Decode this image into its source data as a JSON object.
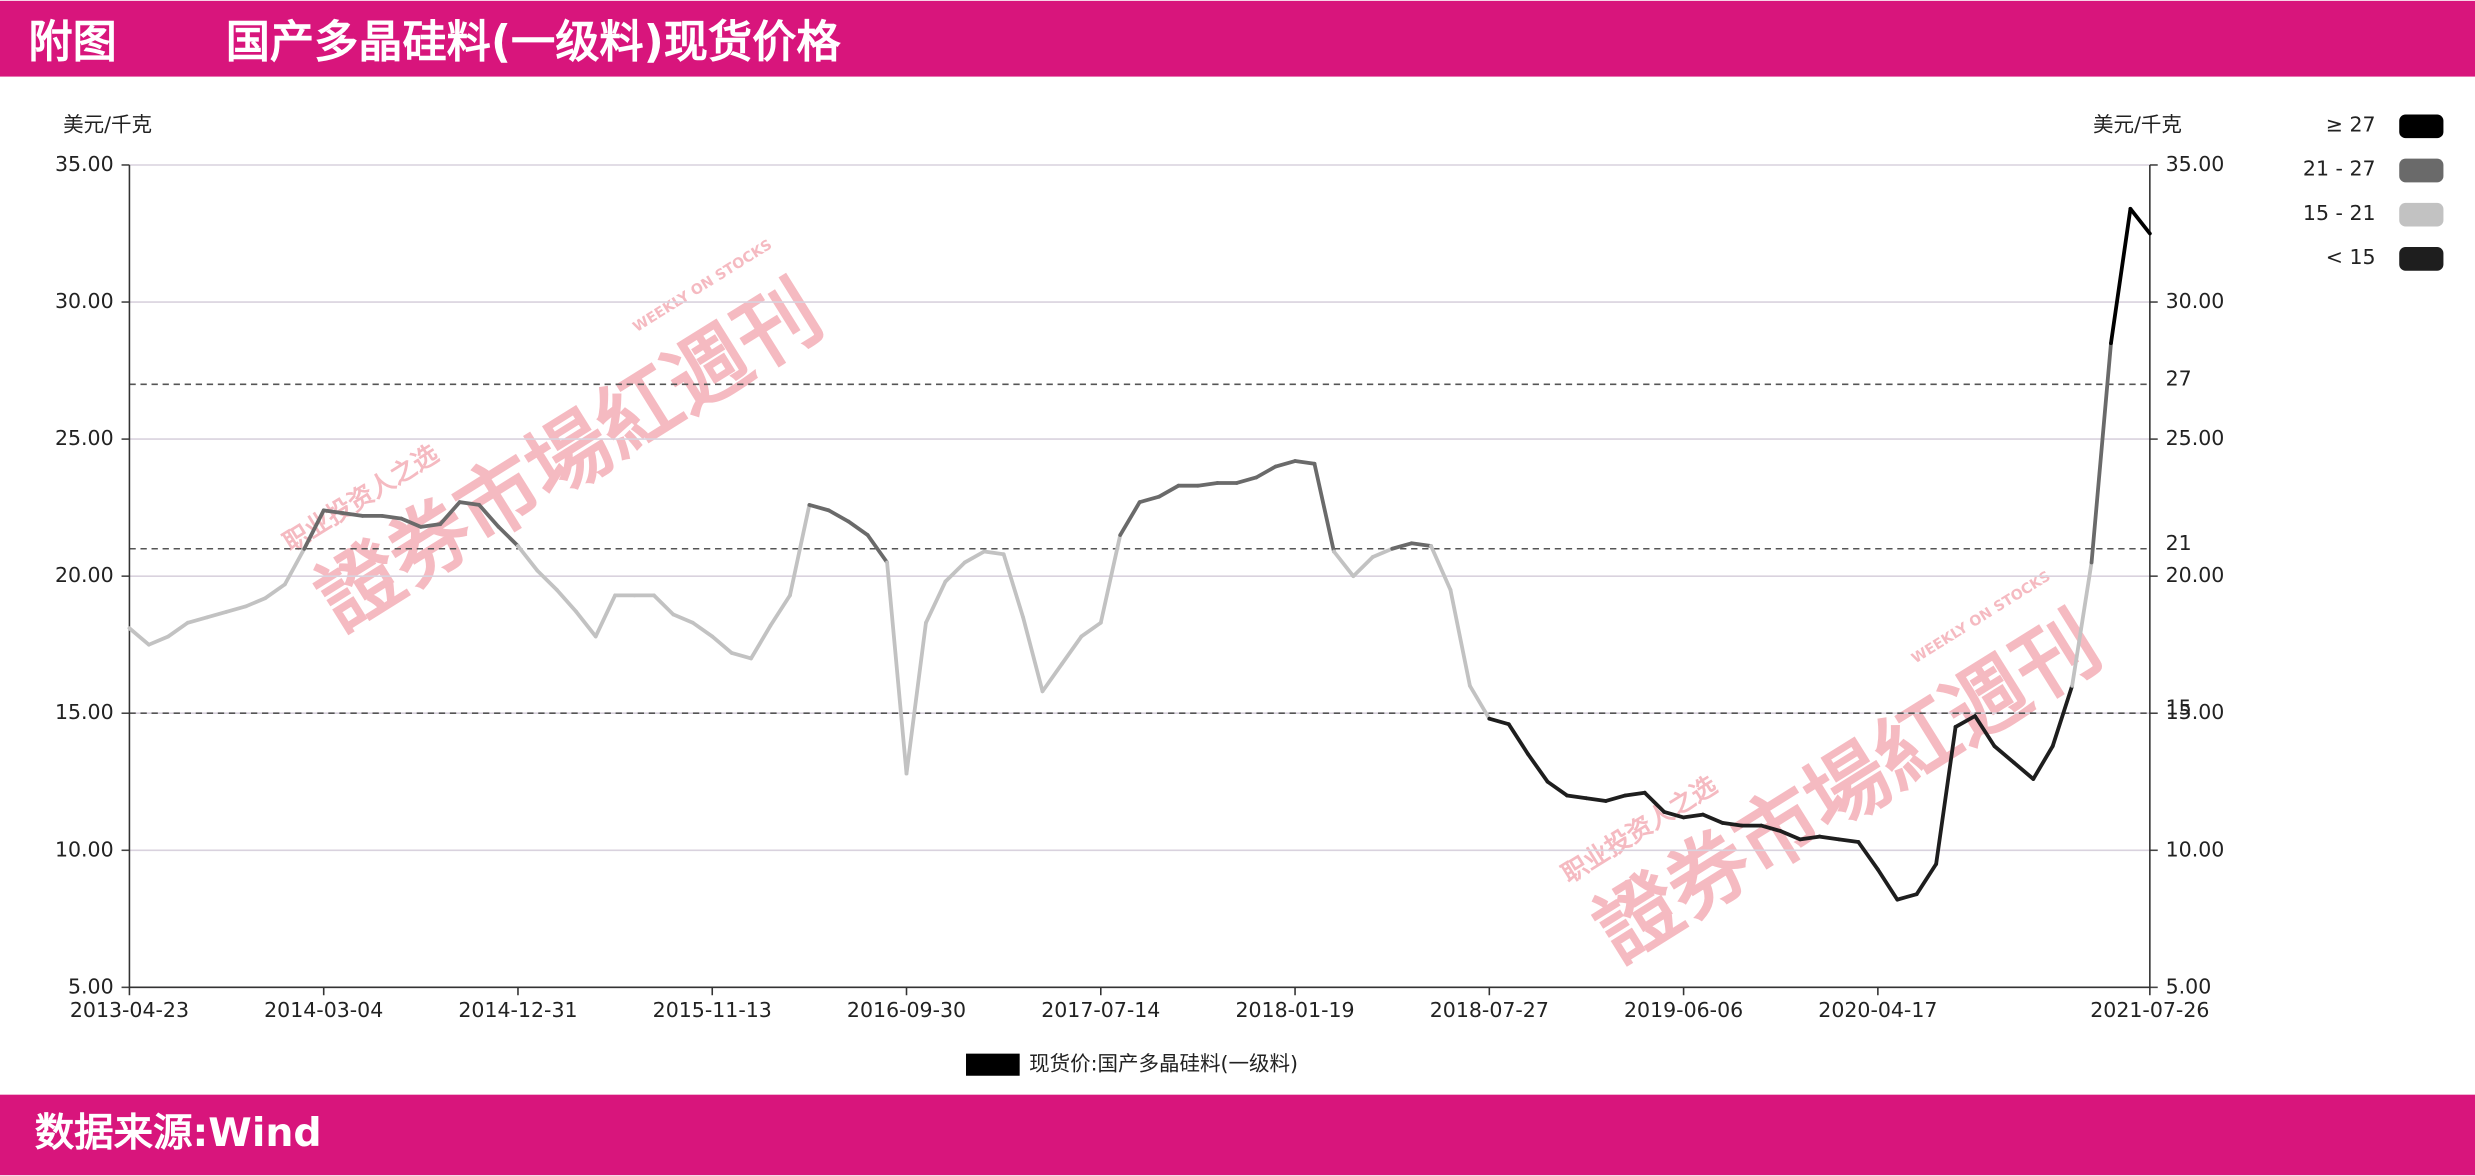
{
  "chart_data": {
    "type": "line",
    "figure_label": "附图",
    "title": "国产多晶硅料(一级料)现货价格",
    "source": "数据来源:Wind",
    "ylabel": "美元/千克",
    "y2label": "美元/千克",
    "categories": [
      "2013-04-23",
      null,
      null,
      null,
      null,
      null,
      null,
      null,
      null,
      null,
      "2014-03-04",
      null,
      null,
      null,
      null,
      null,
      null,
      null,
      null,
      null,
      "2014-12-31",
      null,
      null,
      null,
      null,
      null,
      null,
      null,
      null,
      null,
      "2015-11-13",
      null,
      null,
      null,
      null,
      null,
      null,
      null,
      null,
      null,
      "2016-09-30",
      null,
      null,
      null,
      null,
      null,
      null,
      null,
      null,
      null,
      "2017-07-14",
      null,
      null,
      null,
      null,
      null,
      null,
      null,
      null,
      null,
      "2018-01-19",
      null,
      null,
      null,
      null,
      null,
      null,
      null,
      null,
      null,
      "2018-07-27",
      null,
      null,
      null,
      null,
      null,
      null,
      null,
      null,
      null,
      "2019-06-06",
      null,
      null,
      null,
      null,
      null,
      null,
      null,
      null,
      null,
      "2020-04-17",
      null,
      null,
      null,
      null,
      null,
      null,
      null,
      null,
      null,
      null,
      null,
      null,
      null,
      "2021-07-26"
    ],
    "series": [
      {
        "name": "现货价:国产多晶硅料(一级料)",
        "color": "#000000",
        "values": [
          18.1,
          17.5,
          17.8,
          18.3,
          18.5,
          18.7,
          18.9,
          19.2,
          19.7,
          21.0,
          22.4,
          22.3,
          22.2,
          22.2,
          22.1,
          21.8,
          21.9,
          22.7,
          22.6,
          21.8,
          21.1,
          20.2,
          19.5,
          18.7,
          17.8,
          19.3,
          19.3,
          19.3,
          18.6,
          18.3,
          17.8,
          17.2,
          17.0,
          18.2,
          19.3,
          22.6,
          22.4,
          22.0,
          21.5,
          20.5,
          12.8,
          18.3,
          19.8,
          20.5,
          20.9,
          20.8,
          18.5,
          15.8,
          16.8,
          17.8,
          18.3,
          21.5,
          22.7,
          22.9,
          23.3,
          23.3,
          23.4,
          23.4,
          23.6,
          24.0,
          24.2,
          24.1,
          20.9,
          20.0,
          20.7,
          21.0,
          21.2,
          21.1,
          19.5,
          16.0,
          14.8,
          14.6,
          13.5,
          12.5,
          12.0,
          11.9,
          11.8,
          12.0,
          12.1,
          11.4,
          11.2,
          11.3,
          11.0,
          10.9,
          10.9,
          10.7,
          10.4,
          10.5,
          10.4,
          10.3,
          9.3,
          8.2,
          8.4,
          9.5,
          14.5,
          14.9,
          13.8,
          13.2,
          12.6,
          13.8,
          16.0,
          20.5,
          28.5,
          33.4,
          32.5
        ]
      }
    ],
    "bands": [
      {
        "label": "≥ 27",
        "color": "#000000"
      },
      {
        "label": "21 - 27",
        "color": "#6a6a6a"
      },
      {
        "label": "15 - 21",
        "color": "#c2c2c2"
      },
      {
        "label": "< 15",
        "color": "#1e1e1e"
      }
    ],
    "reference_lines": [
      27,
      21,
      15
    ],
    "ylim": [
      5,
      35
    ],
    "yticks": [
      {
        "value": 5,
        "label": "5.00"
      },
      {
        "value": 10,
        "label": "10.00"
      },
      {
        "value": 15,
        "label": "15.00"
      },
      {
        "value": 20,
        "label": "20.00"
      },
      {
        "value": 25,
        "label": "25.00"
      },
      {
        "value": 30,
        "label": "30.00"
      },
      {
        "value": 35,
        "label": "35.00"
      }
    ],
    "y2lim": [
      5,
      35
    ],
    "y2ticks": [
      {
        "value": 5,
        "label": "5.00"
      },
      {
        "value": 10,
        "label": "10.00"
      },
      {
        "value": 15,
        "label": "15.00"
      },
      {
        "value": 20,
        "label": "20.00"
      },
      {
        "value": 25,
        "label": "25.00"
      },
      {
        "value": 30,
        "label": "30.00"
      },
      {
        "value": 35,
        "label": "35.00"
      }
    ],
    "grid": true
  },
  "watermark": {
    "tagline": "职业投资人之选",
    "name": "證券市場紅週刊",
    "english": "WEEKLY ON STOCKS"
  }
}
